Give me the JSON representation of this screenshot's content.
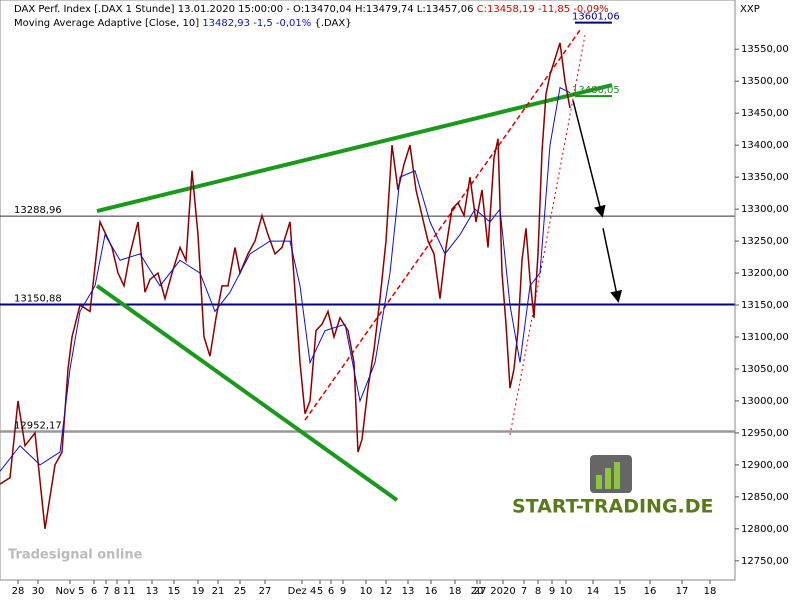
{
  "chart_data": {
    "type": "line",
    "header": {
      "line1": "DAX Perf. Index [.DAX  1 Stunde] 13.01.2020 15:00:00 - O:13470,04 H:13479,74 L:13457,06",
      "line1_change": "C:13458,19 -11,85 -0,09%",
      "line2": "Moving Average Adaptive [Close, 10]",
      "line2_value": "13482,93 -1,5 -0,01%",
      "line2_suffix": "{.DAX}"
    },
    "axis_code": "XXP",
    "logo": "START-TRADING.DE",
    "platform_logo": "Tradesignal online",
    "xlim": [
      0,
      735
    ],
    "ylim": [
      12720,
      13627
    ],
    "xticks": [
      {
        "value": 18,
        "label": "28"
      },
      {
        "value": 38,
        "label": "30"
      },
      {
        "value": 70,
        "label": "Nov 5"
      },
      {
        "value": 94,
        "label": "6"
      },
      {
        "value": 106,
        "label": "7"
      },
      {
        "value": 117,
        "label": "8"
      },
      {
        "value": 129,
        "label": "11"
      },
      {
        "value": 152,
        "label": "13"
      },
      {
        "value": 174,
        "label": "15"
      },
      {
        "value": 198,
        "label": "19"
      },
      {
        "value": 218,
        "label": "21"
      },
      {
        "value": 240,
        "label": "25"
      },
      {
        "value": 265,
        "label": "27"
      },
      {
        "value": 302,
        "label": "Dez 4"
      },
      {
        "value": 320,
        "label": "5"
      },
      {
        "value": 331,
        "label": "6"
      },
      {
        "value": 343,
        "label": "9"
      },
      {
        "value": 366,
        "label": "10"
      },
      {
        "value": 386,
        "label": "12"
      },
      {
        "value": 408,
        "label": "13"
      },
      {
        "value": 431,
        "label": "16"
      },
      {
        "value": 455,
        "label": "18"
      },
      {
        "value": 477,
        "label": "20"
      },
      {
        "value": 480,
        "label": "27"
      },
      {
        "value": 503,
        "label": "2020"
      },
      {
        "value": 524,
        "label": "7"
      },
      {
        "value": 538,
        "label": "8"
      },
      {
        "value": 552,
        "label": "9"
      },
      {
        "value": 566,
        "label": "10"
      },
      {
        "value": 593,
        "label": "14"
      },
      {
        "value": 620,
        "label": "15"
      },
      {
        "value": 650,
        "label": "16"
      },
      {
        "value": 682,
        "label": "17"
      },
      {
        "value": 710,
        "label": "18"
      }
    ],
    "yticks": [
      {
        "value": 12750,
        "label": "12750,00"
      },
      {
        "value": 12800,
        "label": "12800,00"
      },
      {
        "value": 12850,
        "label": "12850,00"
      },
      {
        "value": 12900,
        "label": "12900,00"
      },
      {
        "value": 12950,
        "label": "12950,00"
      },
      {
        "value": 13000,
        "label": "13000,00"
      },
      {
        "value": 13050,
        "label": "13050,00"
      },
      {
        "value": 13100,
        "label": "13100,00"
      },
      {
        "value": 13150,
        "label": "13150,00"
      },
      {
        "value": 13200,
        "label": "13200,00"
      },
      {
        "value": 13250,
        "label": "13250,00"
      },
      {
        "value": 13300,
        "label": "13300,00"
      },
      {
        "value": 13350,
        "label": "13350,00"
      },
      {
        "value": 13400,
        "label": "13400,00"
      },
      {
        "value": 13450,
        "label": "13450,00"
      },
      {
        "value": 13500,
        "label": "13500,00"
      },
      {
        "value": 13550,
        "label": "13550,00"
      }
    ],
    "series": [
      {
        "name": "DAX Perf. Index",
        "color": "#8b0000",
        "x": [
          0,
          10,
          18,
          25,
          35,
          45,
          55,
          62,
          68,
          72,
          80,
          90,
          100,
          106,
          112,
          118,
          124,
          130,
          138,
          145,
          150,
          158,
          165,
          172,
          180,
          186,
          192,
          198,
          204,
          210,
          216,
          222,
          228,
          235,
          240,
          248,
          255,
          262,
          268,
          275,
          282,
          290,
          296,
          300,
          305,
          310,
          316,
          322,
          328,
          334,
          340,
          348,
          354,
          358,
          362,
          368,
          374,
          380,
          386,
          392,
          398,
          404,
          410,
          416,
          422,
          428,
          434,
          440,
          446,
          452,
          458,
          464,
          470,
          476,
          482,
          488,
          494,
          498,
          502,
          506,
          510,
          514,
          518,
          522,
          526,
          530,
          534,
          538,
          542,
          546,
          550,
          556,
          560,
          565,
          570
        ],
        "values": [
          12870,
          12880,
          13000,
          12930,
          12950,
          12800,
          12900,
          12920,
          13050,
          13100,
          13150,
          13140,
          13280,
          13260,
          13240,
          13200,
          13180,
          13230,
          13280,
          13170,
          13190,
          13200,
          13160,
          13200,
          13240,
          13220,
          13360,
          13260,
          13100,
          13070,
          13130,
          13180,
          13180,
          13240,
          13200,
          13230,
          13250,
          13290,
          13260,
          13230,
          13240,
          13280,
          13150,
          13060,
          12980,
          13000,
          13110,
          13120,
          13140,
          13100,
          13130,
          13110,
          13060,
          12920,
          12940,
          13020,
          13080,
          13160,
          13250,
          13400,
          13330,
          13370,
          13400,
          13330,
          13290,
          13250,
          13230,
          13160,
          13240,
          13300,
          13310,
          13290,
          13350,
          13280,
          13330,
          13240,
          13380,
          13410,
          13200,
          13120,
          13020,
          13050,
          13110,
          13220,
          13270,
          13190,
          13130,
          13230,
          13390,
          13480,
          13510,
          13540,
          13560,
          13500,
          13458
        ]
      },
      {
        "name": "Moving Average Adaptive",
        "color": "#1010c0",
        "x": [
          0,
          20,
          40,
          60,
          70,
          80,
          95,
          105,
          120,
          140,
          160,
          180,
          200,
          215,
          230,
          250,
          270,
          290,
          300,
          310,
          325,
          345,
          360,
          375,
          390,
          400,
          415,
          430,
          445,
          460,
          475,
          490,
          500,
          510,
          520,
          530,
          540,
          550,
          560,
          570
        ],
        "values": [
          12890,
          12930,
          12900,
          12920,
          13050,
          13140,
          13180,
          13260,
          13220,
          13230,
          13180,
          13220,
          13200,
          13140,
          13170,
          13230,
          13250,
          13250,
          13180,
          13060,
          13110,
          13120,
          13000,
          13060,
          13200,
          13350,
          13360,
          13280,
          13230,
          13260,
          13300,
          13280,
          13300,
          13150,
          13060,
          13180,
          13200,
          13400,
          13490,
          13482
        ]
      }
    ],
    "levels": [
      {
        "value": 13288.96,
        "label": "13288,96",
        "color": "#333333",
        "width": 1
      },
      {
        "value": 13150.88,
        "label": "13150,88",
        "color": "#000080",
        "width": 2
      },
      {
        "value": 12952.17,
        "label": "12952,17",
        "color": "#999999",
        "width": 2.5
      }
    ],
    "markers": [
      {
        "value": 13601.06,
        "label": "13601,06",
        "color": "#000080"
      },
      {
        "value": 13486.05,
        "label": "13486,05",
        "color": "#228b22"
      }
    ],
    "trendlines": [
      {
        "color": "#1a9a1a",
        "x": [
          97,
          612
        ],
        "values": [
          13297,
          13494
        ]
      },
      {
        "color": "#1a9a1a",
        "x": [
          97,
          397
        ],
        "values": [
          13180,
          12845
        ]
      },
      {
        "color": "#dd0000",
        "x": [
          305,
          580
        ],
        "values": [
          12970,
          13580
        ]
      },
      {
        "color": "#dd0000",
        "x": [
          510,
          585
        ],
        "values": [
          12947,
          13572
        ]
      },
      {
        "color": "#000000",
        "x": [
          573,
          602
        ],
        "values": [
          13470,
          13291
        ]
      },
      {
        "color": "#000000",
        "x": [
          603,
          618
        ],
        "values": [
          13270,
          13158
        ]
      }
    ]
  }
}
